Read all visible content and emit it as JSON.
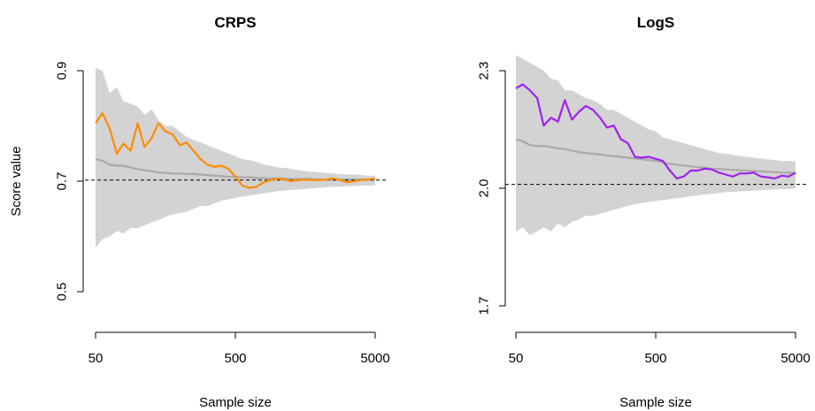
{
  "figure": {
    "ylabel": "Score value"
  },
  "chart_data": [
    {
      "type": "line",
      "title": "CRPS",
      "xlabel": "Sample size",
      "ylabel": "Score value",
      "x_scale": "log",
      "x_ticks": [
        50,
        500,
        5000
      ],
      "x_tick_labels": [
        "50",
        "500",
        "5000"
      ],
      "y_ticks": [
        0.5,
        0.7,
        0.9
      ],
      "y_tick_labels": [
        "0.5",
        "0.7",
        "0.9"
      ],
      "xlim": [
        50,
        5000
      ],
      "ylim": [
        0.48,
        0.92
      ],
      "reference_line": 0.702,
      "band_color": "#d3d3d3",
      "mean_color": "#a9a9a9",
      "series_color": "#ff8c00",
      "x": [
        50,
        56,
        63,
        71,
        79,
        89,
        100,
        112,
        126,
        141,
        158,
        178,
        200,
        224,
        251,
        282,
        316,
        355,
        398,
        447,
        501,
        562,
        631,
        708,
        794,
        891,
        1000,
        1122,
        1259,
        1413,
        1585,
        1778,
        1995,
        2239,
        2512,
        2818,
        3162,
        3548,
        3981,
        4467,
        5000
      ],
      "band_upper": [
        0.905,
        0.9,
        0.86,
        0.87,
        0.845,
        0.84,
        0.835,
        0.82,
        0.83,
        0.81,
        0.8,
        0.8,
        0.79,
        0.78,
        0.775,
        0.77,
        0.765,
        0.76,
        0.755,
        0.75,
        0.745,
        0.74,
        0.738,
        0.735,
        0.73,
        0.728,
        0.725,
        0.724,
        0.722,
        0.72,
        0.718,
        0.717,
        0.716,
        0.715,
        0.714,
        0.713,
        0.712,
        0.712,
        0.711,
        0.71,
        0.71
      ],
      "band_lower": [
        0.58,
        0.595,
        0.6,
        0.61,
        0.605,
        0.615,
        0.615,
        0.62,
        0.625,
        0.63,
        0.635,
        0.64,
        0.642,
        0.645,
        0.65,
        0.655,
        0.655,
        0.66,
        0.665,
        0.667,
        0.67,
        0.672,
        0.674,
        0.676,
        0.678,
        0.68,
        0.682,
        0.683,
        0.684,
        0.685,
        0.686,
        0.687,
        0.688,
        0.689,
        0.69,
        0.69,
        0.691,
        0.691,
        0.692,
        0.692,
        0.693
      ],
      "mean": [
        0.74,
        0.737,
        0.73,
        0.728,
        0.728,
        0.725,
        0.722,
        0.72,
        0.718,
        0.716,
        0.715,
        0.714,
        0.714,
        0.713,
        0.713,
        0.712,
        0.711,
        0.71,
        0.709,
        0.708,
        0.708,
        0.707,
        0.707,
        0.706,
        0.706,
        0.705,
        0.705,
        0.705,
        0.704,
        0.704,
        0.704,
        0.704,
        0.703,
        0.703,
        0.703,
        0.703,
        0.703,
        0.703,
        0.703,
        0.703,
        0.703
      ],
      "values": [
        0.805,
        0.823,
        0.795,
        0.75,
        0.768,
        0.755,
        0.805,
        0.762,
        0.778,
        0.805,
        0.79,
        0.785,
        0.765,
        0.77,
        0.755,
        0.74,
        0.73,
        0.726,
        0.728,
        0.722,
        0.708,
        0.692,
        0.688,
        0.69,
        0.698,
        0.702,
        0.705,
        0.703,
        0.7,
        0.702,
        0.703,
        0.702,
        0.702,
        0.703,
        0.705,
        0.702,
        0.698,
        0.7,
        0.702,
        0.703,
        0.705
      ]
    },
    {
      "type": "line",
      "title": "LogS",
      "xlabel": "Sample size",
      "ylabel": "",
      "x_scale": "log",
      "x_ticks": [
        50,
        500,
        5000
      ],
      "x_tick_labels": [
        "50",
        "500",
        "5000"
      ],
      "y_ticks": [
        1.7,
        2.0,
        2.3
      ],
      "y_tick_labels": [
        "1.7",
        "2.0",
        "2.3"
      ],
      "xlim": [
        50,
        5000
      ],
      "ylim": [
        1.68,
        2.34
      ],
      "reference_line": 2.01,
      "band_color": "#d3d3d3",
      "mean_color": "#a9a9a9",
      "series_color": "#a020f0",
      "x": [
        50,
        56,
        63,
        71,
        79,
        89,
        100,
        112,
        126,
        141,
        158,
        178,
        200,
        224,
        251,
        282,
        316,
        355,
        398,
        447,
        501,
        562,
        631,
        708,
        794,
        891,
        1000,
        1122,
        1259,
        1413,
        1585,
        1778,
        1995,
        2239,
        2512,
        2818,
        3162,
        3548,
        3981,
        4467,
        5000
      ],
      "band_upper": [
        2.34,
        2.33,
        2.32,
        2.31,
        2.3,
        2.28,
        2.275,
        2.25,
        2.25,
        2.24,
        2.23,
        2.225,
        2.215,
        2.2,
        2.2,
        2.19,
        2.18,
        2.17,
        2.16,
        2.15,
        2.145,
        2.13,
        2.125,
        2.12,
        2.115,
        2.11,
        2.105,
        2.1,
        2.095,
        2.09,
        2.088,
        2.085,
        2.082,
        2.08,
        2.078,
        2.076,
        2.074,
        2.072,
        2.07,
        2.07,
        2.068
      ],
      "band_lower": [
        1.89,
        1.9,
        1.88,
        1.89,
        1.9,
        1.89,
        1.91,
        1.9,
        1.915,
        1.92,
        1.93,
        1.93,
        1.935,
        1.94,
        1.945,
        1.95,
        1.955,
        1.96,
        1.962,
        1.965,
        1.968,
        1.97,
        1.972,
        1.975,
        1.977,
        1.98,
        1.982,
        1.984,
        1.986,
        1.988,
        1.99,
        1.991,
        1.992,
        1.993,
        1.994,
        1.995,
        1.996,
        1.997,
        1.998,
        1.998,
        1.999
      ],
      "mean": [
        2.125,
        2.12,
        2.11,
        2.108,
        2.108,
        2.105,
        2.102,
        2.1,
        2.096,
        2.092,
        2.09,
        2.088,
        2.086,
        2.084,
        2.082,
        2.08,
        2.078,
        2.076,
        2.074,
        2.072,
        2.07,
        2.066,
        2.062,
        2.06,
        2.058,
        2.056,
        2.054,
        2.052,
        2.05,
        2.049,
        2.048,
        2.047,
        2.046,
        2.045,
        2.044,
        2.043,
        2.042,
        2.041,
        2.04,
        2.04,
        2.039
      ],
      "values": [
        2.255,
        2.265,
        2.25,
        2.23,
        2.16,
        2.18,
        2.17,
        2.225,
        2.175,
        2.195,
        2.21,
        2.2,
        2.18,
        2.155,
        2.16,
        2.125,
        2.115,
        2.08,
        2.078,
        2.08,
        2.075,
        2.07,
        2.045,
        2.025,
        2.03,
        2.045,
        2.045,
        2.05,
        2.048,
        2.04,
        2.035,
        2.03,
        2.038,
        2.038,
        2.04,
        2.03,
        2.028,
        2.025,
        2.032,
        2.03,
        2.04
      ]
    }
  ]
}
